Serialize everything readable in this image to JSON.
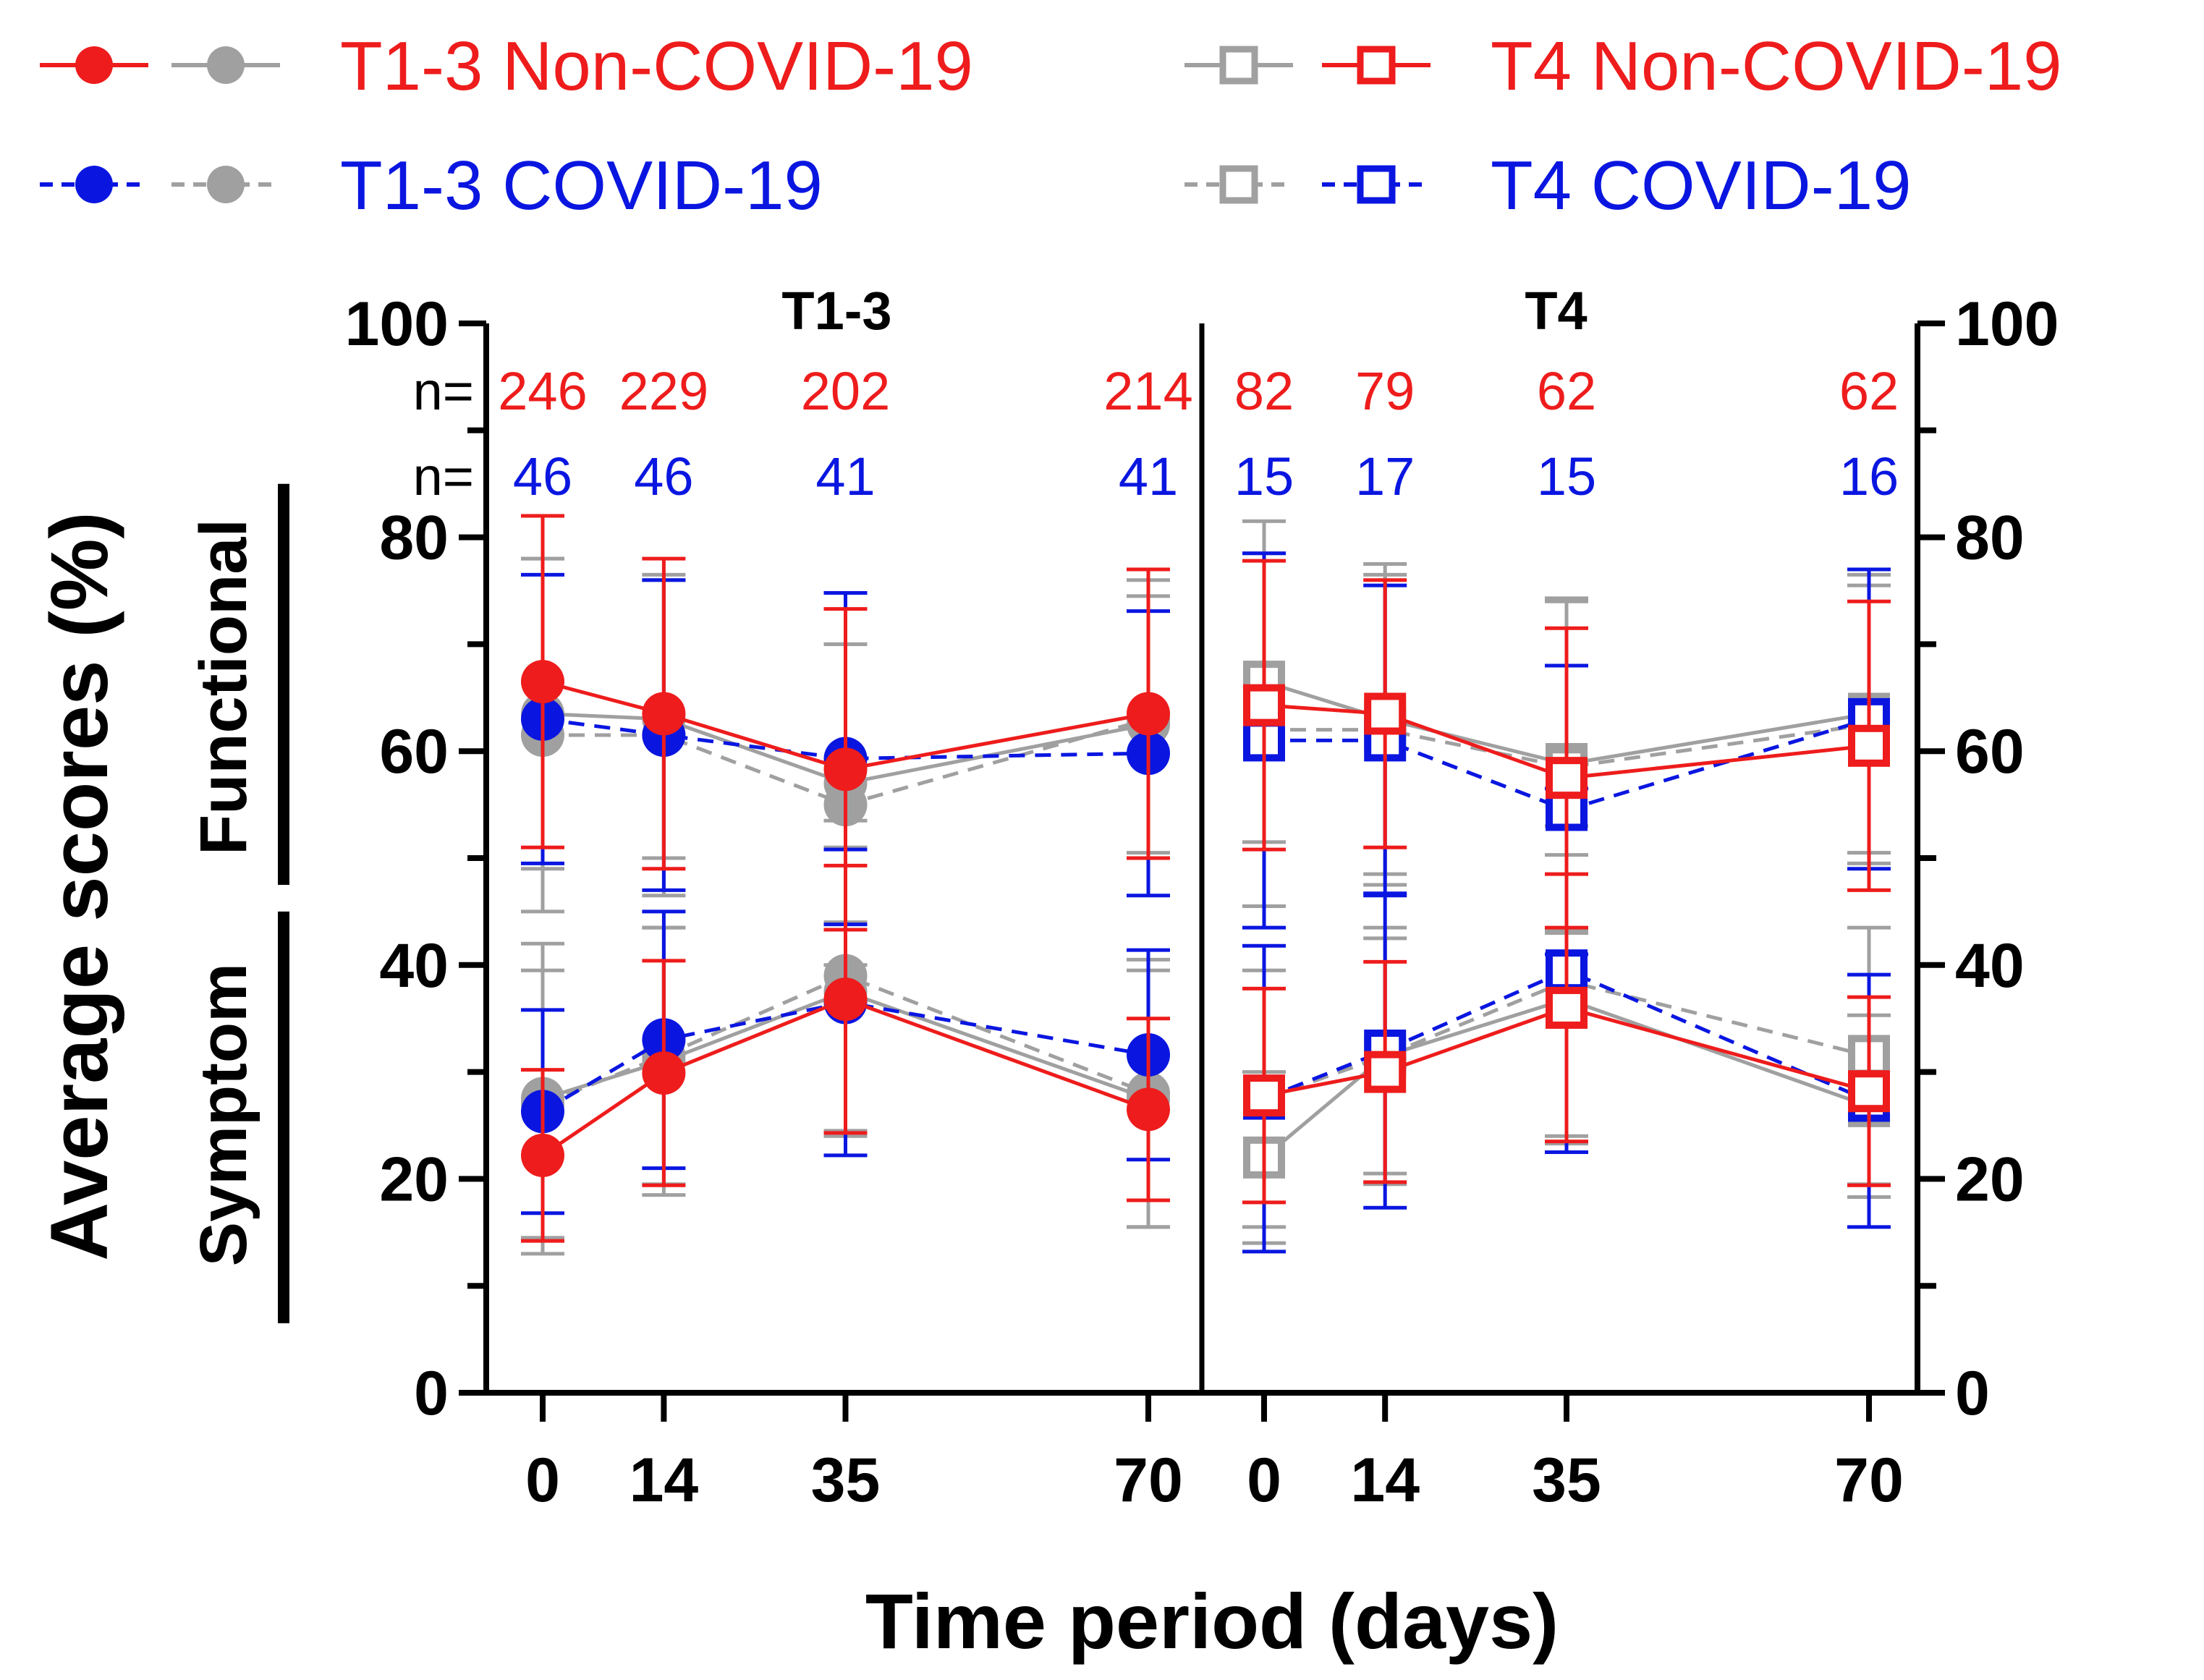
{
  "chart_data": {
    "type": "line",
    "ylabel": "Average scores (%)",
    "xlabel": "Time period (days)",
    "ylim": [
      0,
      100
    ],
    "y_ticks": [
      "0",
      "20",
      "40",
      "60",
      "80",
      "100"
    ],
    "subscale_labels": [
      "Functional",
      "Symptom"
    ],
    "n_prefix": "n=",
    "colors": {
      "nonCovid": "#ee1c1c",
      "covid": "#0a16e0",
      "grey": "#a0a0a0",
      "axis": "#000000"
    },
    "legend": [
      {
        "label": "T1-3 Non-COVID-19",
        "group": "T1-3",
        "kind": "nonCovid",
        "marker": "circle",
        "dashed": false
      },
      {
        "label": "T4 Non-COVID-19",
        "group": "T4",
        "kind": "nonCovid",
        "marker": "square",
        "dashed": false
      },
      {
        "label": "T1-3 COVID-19",
        "group": "T1-3",
        "kind": "covid",
        "marker": "circle",
        "dashed": true
      },
      {
        "label": "T4 COVID-19",
        "group": "T4",
        "kind": "covid",
        "marker": "square",
        "dashed": true
      }
    ],
    "panels": [
      {
        "title": "T1-3",
        "marker": "circle",
        "x": [
          0,
          14,
          35,
          70
        ],
        "x_tick_labels": [
          "0",
          "14",
          "35",
          "70"
        ],
        "n_noncovid": [
          "246",
          "229",
          "202",
          "214"
        ],
        "n_covid": [
          "46",
          "46",
          "41",
          "41"
        ],
        "series": [
          {
            "name": "T1-3 Non-COVID-19 Functional",
            "kind": "nonCovid",
            "dashed": false,
            "values": [
              66.5,
              63.5,
              58.3,
              63.5
            ],
            "sd": [
              15.5,
              14.5,
              15.0,
              13.5
            ]
          },
          {
            "name": "T1-3 Non-COVID-19 Functional (comparison)",
            "kind": "grey",
            "dashed": false,
            "values": [
              63.5,
              63.0,
              57.0,
              62.5
            ],
            "sd": [
              14.5,
              13.0,
              13.0,
              12.0
            ]
          },
          {
            "name": "T1-3 COVID-19 Functional",
            "kind": "covid",
            "dashed": true,
            "values": [
              63.0,
              61.5,
              59.3,
              59.8
            ],
            "sd": [
              13.5,
              14.5,
              15.5,
              13.3
            ]
          },
          {
            "name": "T1-3 COVID-19 Functional (comparison)",
            "kind": "grey",
            "dashed": true,
            "values": [
              61.5,
              61.5,
              55.0,
              63.0
            ],
            "sd": [
              16.5,
              15.0,
              15.0,
              13.0
            ]
          },
          {
            "name": "T1-3 Non-COVID-19 Symptom",
            "kind": "nonCovid",
            "dashed": false,
            "values": [
              22.2,
              29.9,
              36.8,
              26.5
            ],
            "sd": [
              8.0,
              10.5,
              12.5,
              8.5
            ]
          },
          {
            "name": "T1-3 Non-COVID-19 Symptom (comparison)",
            "kind": "grey",
            "dashed": false,
            "values": [
              27.5,
              31.0,
              37.5,
              27.5
            ],
            "sd": [
              14.5,
              12.5,
              13.5,
              12.0
            ]
          },
          {
            "name": "T1-3 COVID-19 Symptom",
            "kind": "covid",
            "dashed": true,
            "values": [
              26.3,
              33.0,
              36.5,
              31.6
            ],
            "sd": [
              9.5,
              12.0,
              14.3,
              9.8
            ]
          },
          {
            "name": "T1-3 COVID-19 Symptom (comparison)",
            "kind": "grey",
            "dashed": true,
            "values": [
              27.0,
              31.5,
              39.0,
              28.0
            ],
            "sd": [
              12.5,
              12.0,
              14.5,
              12.5
            ]
          }
        ]
      },
      {
        "title": "T4",
        "marker": "square",
        "x": [
          0,
          14,
          35,
          70
        ],
        "x_tick_labels": [
          "0",
          "14",
          "35",
          "70"
        ],
        "n_noncovid": [
          "82",
          "79",
          "62",
          "62"
        ],
        "n_covid": [
          "15",
          "17",
          "15",
          "16"
        ],
        "series": [
          {
            "name": "T4 Non-COVID-19 Functional",
            "kind": "nonCovid",
            "dashed": false,
            "values": [
              64.3,
              63.5,
              57.5,
              60.5
            ],
            "sd": [
              13.5,
              12.5,
              14.0,
              13.5
            ]
          },
          {
            "name": "T4 Non-COVID-19 Functional (comparison)",
            "kind": "grey",
            "dashed": false,
            "values": [
              66.5,
              63.0,
              58.8,
              63.5
            ],
            "sd": [
              15.0,
              14.5,
              15.5,
              13.0
            ]
          },
          {
            "name": "T4 COVID-19 Functional",
            "kind": "covid",
            "dashed": true,
            "values": [
              61.0,
              61.0,
              54.5,
              63.0
            ],
            "sd": [
              17.5,
              14.5,
              13.5,
              14.0
            ]
          },
          {
            "name": "T4 COVID-19 Functional (comparison)",
            "kind": "grey",
            "dashed": true,
            "values": [
              62.0,
              62.0,
              58.5,
              62.5
            ],
            "sd": [
              16.5,
              14.5,
              15.5,
              13.0
            ]
          },
          {
            "name": "T4 Non-COVID-19 Symptom",
            "kind": "nonCovid",
            "dashed": false,
            "values": [
              27.8,
              30.0,
              36.0,
              28.2
            ],
            "sd": [
              10.0,
              10.3,
              12.5,
              8.8
            ]
          },
          {
            "name": "T4 Non-COVID-19 Symptom (comparison)",
            "kind": "grey",
            "dashed": false,
            "values": [
              22.0,
              31.5,
              36.8,
              26.8
            ],
            "sd": [
              8.0,
              11.0,
              13.5,
              8.5
            ]
          },
          {
            "name": "T4 COVID-19 Symptom",
            "kind": "covid",
            "dashed": true,
            "values": [
              27.5,
              32.0,
              39.5,
              27.3
            ],
            "sd": [
              14.3,
              14.7,
              17.0,
              11.8
            ]
          },
          {
            "name": "T4 COVID-19 Symptom (comparison)",
            "kind": "grey",
            "dashed": true,
            "values": [
              27.5,
              31.5,
              38.5,
              31.5
            ],
            "sd": [
              12.0,
              12.0,
              14.5,
              12.0
            ]
          }
        ]
      }
    ]
  }
}
